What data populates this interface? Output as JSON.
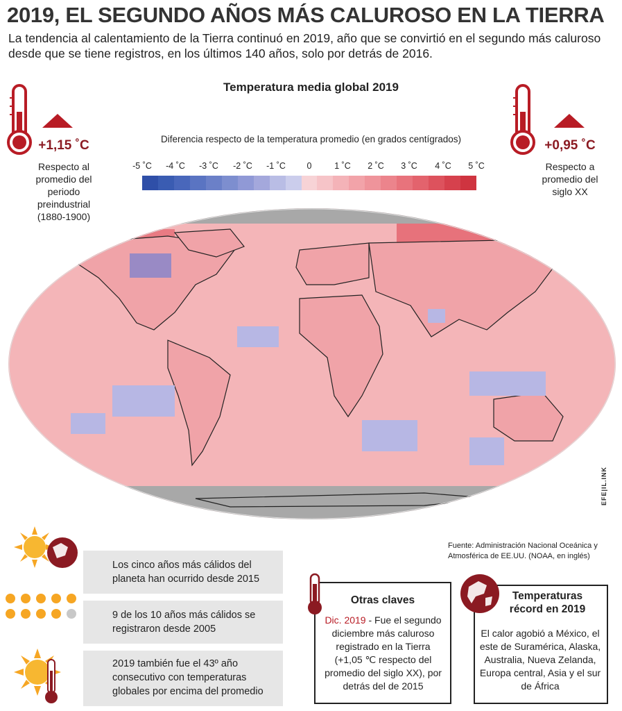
{
  "title": "2019, EL SEGUNDO AÑOS MÁS CALUROSO EN LA TIERRA",
  "subtitle": "La tendencia al calentamiento de la Tierra continuó en 2019, año que se convirtió en el segundo más caluroso desde que se tiene registros, en los últimos 140 años, solo por detrás de 2016.",
  "map": {
    "title": "Temperatura media global 2019",
    "legend_label": "Diferencia respecto de la temperatura promedio (en grados centígrados)",
    "ticks": [
      "-5 ˚C",
      "-4 ˚C",
      "-3 ˚C",
      "-2 ˚C",
      "-1 ˚C",
      "0",
      "1 ˚C",
      "2 ˚C",
      "3 ˚C",
      "4 ˚C",
      "5 ˚C"
    ],
    "scale_colors": [
      "#2f4fa8",
      "#3a5cb2",
      "#4967bb",
      "#5a74c2",
      "#6b80c8",
      "#7d8ecf",
      "#9099d6",
      "#a4a8dc",
      "#b9bde5",
      "#cbcdec",
      "#f7d3d6",
      "#f6c4c8",
      "#f4b3b8",
      "#f2a3a9",
      "#ef949b",
      "#ec848c",
      "#e8737c",
      "#e3636d",
      "#dd525d",
      "#d6414d",
      "#cf3440"
    ],
    "colors": {
      "land_warm": "#f0a3a8",
      "ocean_warm": "#f4b5b8",
      "hot": "#e4626c",
      "cool": "#b7b7e4",
      "cold": "#7c82cf",
      "nodata": "#a8a8a8"
    }
  },
  "left_stat": {
    "value": "+1,15 ˚C",
    "description": "Respecto al promedio del periodo preindustrial (1880-1900)"
  },
  "right_stat": {
    "value": "+0,95 ˚C",
    "description": "Respecto a promedio del siglo XX"
  },
  "source": "Fuente: Administración Nacional Oceánica y Atmosférica de EE.UU. (NOAA, en inglés)",
  "facts": [
    {
      "text": "Los cinco años más cálidos del planeta han ocurrido desde 2015"
    },
    {
      "text": "9 de los 10 años más cálidos se registraron desde 2005"
    },
    {
      "text": "2019 también fue el 43º año consecutivo con temperaturas globales por encima del promedio"
    }
  ],
  "otras_claves": {
    "title": "Otras claves",
    "highlight": "Dic. 2019",
    "text": " - Fue el segundo diciembre más caluroso registrado en la Tierra (+1,05 ℃ respecto del promedio del siglo XX), por detrás del de 2015"
  },
  "records": {
    "title": "Temperaturas récord en 2019",
    "text": "El calor agobió a México, el este de Suramérica, Alaska, Australia, Nueva Zelanda, Europa central, Asia y el sur de África"
  },
  "credit": "EFE|IL.INK",
  "icons": [
    "thermometer-icon",
    "warning-triangle-icon",
    "sun-icon",
    "globe-icon"
  ]
}
